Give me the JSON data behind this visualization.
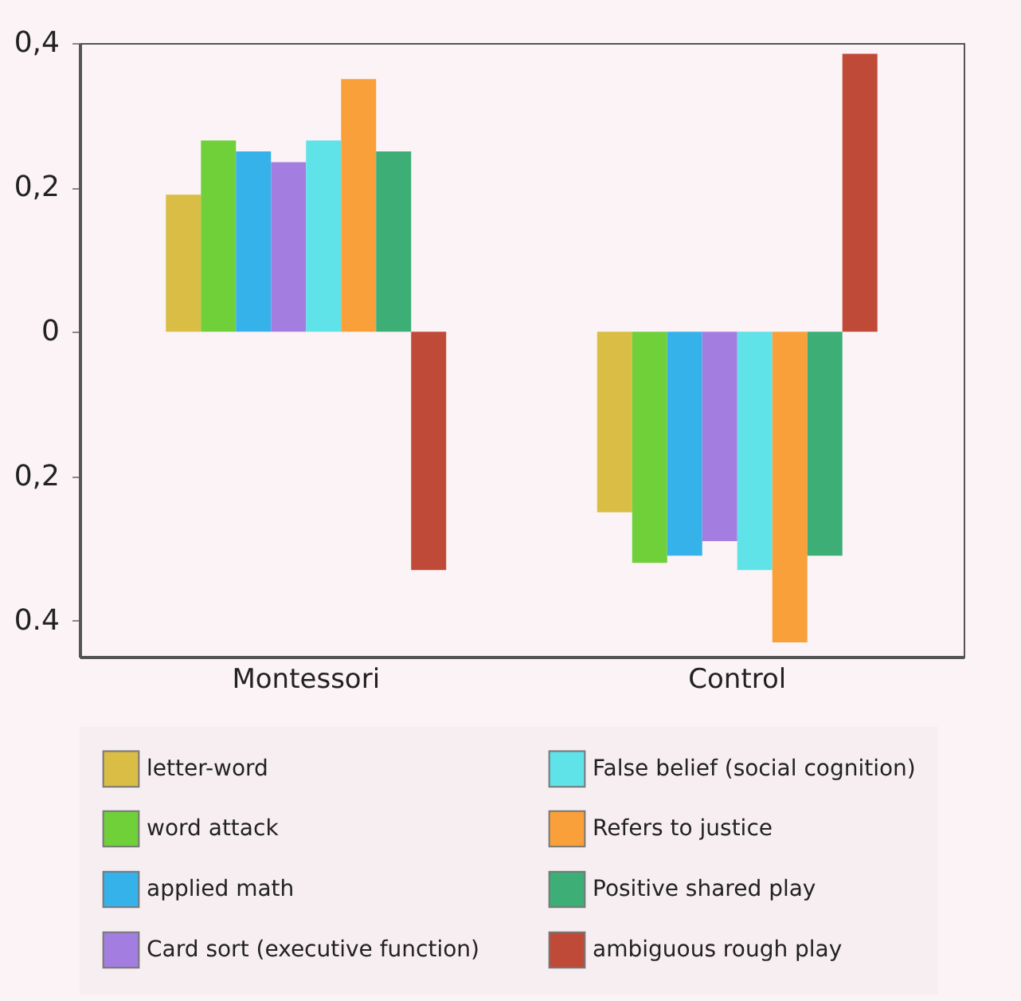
{
  "chart_data": {
    "type": "bar",
    "categories": [
      "Montessori",
      "Control"
    ],
    "series": [
      {
        "name": "letter-word",
        "color": "#d9bd45",
        "values": [
          0.19,
          -0.25
        ]
      },
      {
        "name": "word attack",
        "color": "#6fd03a",
        "values": [
          0.265,
          -0.32
        ]
      },
      {
        "name": "applied math",
        "color": "#35b2ea",
        "values": [
          0.25,
          -0.31
        ]
      },
      {
        "name": "Card sort (executive function)",
        "color": "#a47de0",
        "values": [
          0.235,
          -0.29
        ]
      },
      {
        "name": "False belief (social cognition)",
        "color": "#5fe2e8",
        "values": [
          0.265,
          -0.33
        ]
      },
      {
        "name": "Refers to justice",
        "color": "#f9a03a",
        "values": [
          0.35,
          -0.43
        ]
      },
      {
        "name": "Positive shared play",
        "color": "#3cae76",
        "values": [
          0.25,
          -0.31
        ]
      },
      {
        "name": "ambiguous rough play",
        "color": "#c04a38",
        "values": [
          -0.33,
          0.385
        ]
      }
    ],
    "ylim": [
      -0.45,
      0.4
    ],
    "yticks": [
      {
        "value": 0.4,
        "label": "0,4"
      },
      {
        "value": 0.2,
        "label": "0,2"
      },
      {
        "value": 0,
        "label": "0"
      },
      {
        "value": -0.2,
        "label": "0,2"
      },
      {
        "value": -0.4,
        "label": "0.4"
      }
    ],
    "grid": false,
    "legend": "bottom"
  }
}
